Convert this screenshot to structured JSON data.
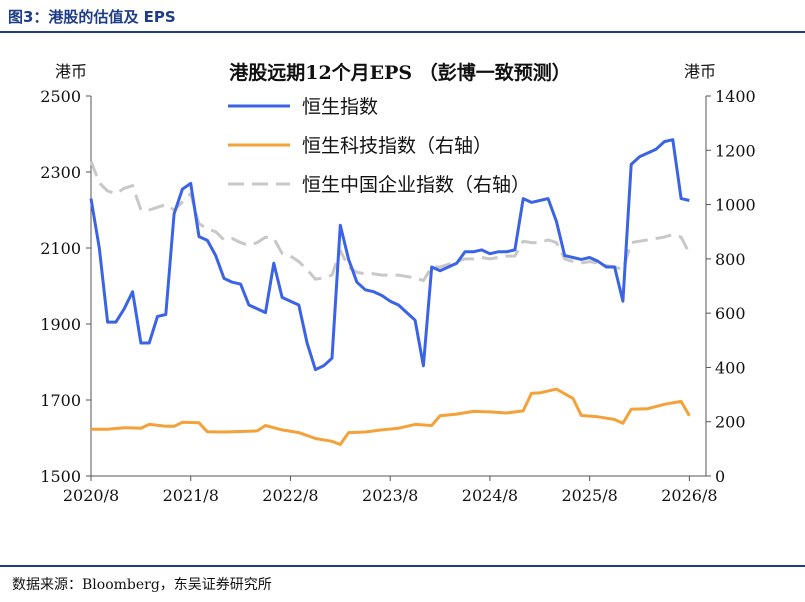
{
  "figure_title": "图3：港股的估值及 EPS",
  "source": "数据来源：Bloomberg，东吴证券研究所",
  "chart_data": {
    "type": "line",
    "title": "港股远期12个月EPS （彭博一致预测）",
    "ylabel_left": "港币",
    "ylabel_right": "港币",
    "ylim_left": [
      1500,
      2500
    ],
    "ylim_right": [
      0,
      1400
    ],
    "yticks_left": [
      1500,
      1700,
      1900,
      2100,
      2300,
      2500
    ],
    "yticks_right": [
      0,
      200,
      400,
      600,
      800,
      1000,
      1200,
      1400
    ],
    "xlim": [
      "2020-08",
      "2026-10"
    ],
    "xticks": [
      "2020/8",
      "2021/8",
      "2022/8",
      "2023/8",
      "2024/8",
      "2025/8",
      "2026/8"
    ],
    "grid": false,
    "legend_position": "top-center",
    "colors": {
      "hsi": "#3b63e6",
      "hstech": "#f4a139",
      "hscei": "#c8c8c8"
    },
    "series": [
      {
        "name": "恒生指数",
        "axis": "left",
        "style": "solid",
        "points": [
          [
            "2020-08",
            2230
          ],
          [
            "2020-09",
            2100
          ],
          [
            "2020-10",
            1905
          ],
          [
            "2020-11",
            1905
          ],
          [
            "2020-12",
            1940
          ],
          [
            "2021-01",
            1985
          ],
          [
            "2021-02",
            1850
          ],
          [
            "2021-03",
            1850
          ],
          [
            "2021-04",
            1920
          ],
          [
            "2021-05",
            1925
          ],
          [
            "2021-06",
            2190
          ],
          [
            "2021-07",
            2255
          ],
          [
            "2021-08",
            2270
          ],
          [
            "2021-09",
            2130
          ],
          [
            "2021-10",
            2120
          ],
          [
            "2021-11",
            2080
          ],
          [
            "2021-12",
            2020
          ],
          [
            "2022-01",
            2010
          ],
          [
            "2022-02",
            2005
          ],
          [
            "2022-03",
            1950
          ],
          [
            "2022-04",
            1940
          ],
          [
            "2022-05",
            1930
          ],
          [
            "2022-06",
            2060
          ],
          [
            "2022-07",
            1970
          ],
          [
            "2022-08",
            1960
          ],
          [
            "2022-09",
            1950
          ],
          [
            "2022-10",
            1850
          ],
          [
            "2022-11",
            1780
          ],
          [
            "2022-12",
            1790
          ],
          [
            "2023-01",
            1810
          ],
          [
            "2023-02",
            2160
          ],
          [
            "2023-03",
            2070
          ],
          [
            "2023-04",
            2010
          ],
          [
            "2023-05",
            1990
          ],
          [
            "2023-06",
            1985
          ],
          [
            "2023-07",
            1975
          ],
          [
            "2023-08",
            1960
          ],
          [
            "2023-09",
            1950
          ],
          [
            "2023-10",
            1930
          ],
          [
            "2023-11",
            1910
          ],
          [
            "2023-12",
            1790
          ],
          [
            "2024-01",
            2050
          ],
          [
            "2024-02",
            2040
          ],
          [
            "2024-03",
            2050
          ],
          [
            "2024-04",
            2060
          ],
          [
            "2024-05",
            2090
          ],
          [
            "2024-06",
            2090
          ],
          [
            "2024-07",
            2095
          ],
          [
            "2024-08",
            2085
          ],
          [
            "2024-09",
            2090
          ],
          [
            "2024-10",
            2090
          ],
          [
            "2024-11",
            2095
          ],
          [
            "2024-12",
            2230
          ],
          [
            "2025-01",
            2220
          ],
          [
            "2025-02",
            2225
          ],
          [
            "2025-03",
            2230
          ],
          [
            "2025-04",
            2170
          ],
          [
            "2025-05",
            2080
          ],
          [
            "2025-06",
            2075
          ],
          [
            "2025-07",
            2070
          ],
          [
            "2025-08",
            2075
          ],
          [
            "2025-09",
            2065
          ],
          [
            "2025-10",
            2050
          ],
          [
            "2025-11",
            2050
          ],
          [
            "2025-12",
            1960
          ],
          [
            "2026-01",
            2320
          ],
          [
            "2026-02",
            2340
          ],
          [
            "2026-03",
            2350
          ],
          [
            "2026-04",
            2360
          ],
          [
            "2026-05",
            2380
          ],
          [
            "2026-06",
            2385
          ],
          [
            "2026-07",
            2230
          ],
          [
            "2026-08",
            2225
          ]
        ]
      },
      {
        "name": "恒生科技指数（右轴）",
        "axis": "right",
        "style": "solid",
        "points": [
          [
            "2020-08",
            172
          ],
          [
            "2020-10",
            172
          ],
          [
            "2020-12",
            178
          ],
          [
            "2021-02",
            176
          ],
          [
            "2021-03",
            190
          ],
          [
            "2021-05",
            183
          ],
          [
            "2021-06",
            183
          ],
          [
            "2021-07",
            198
          ],
          [
            "2021-09",
            196
          ],
          [
            "2021-10",
            163
          ],
          [
            "2021-12",
            162
          ],
          [
            "2022-02",
            164
          ],
          [
            "2022-04",
            166
          ],
          [
            "2022-05",
            186
          ],
          [
            "2022-07",
            170
          ],
          [
            "2022-09",
            160
          ],
          [
            "2022-11",
            138
          ],
          [
            "2023-01",
            128
          ],
          [
            "2023-02",
            116
          ],
          [
            "2023-03",
            160
          ],
          [
            "2023-05",
            162
          ],
          [
            "2023-07",
            170
          ],
          [
            "2023-09",
            176
          ],
          [
            "2023-11",
            190
          ],
          [
            "2024-01",
            186
          ],
          [
            "2024-02",
            222
          ],
          [
            "2024-04",
            228
          ],
          [
            "2024-06",
            238
          ],
          [
            "2024-08",
            236
          ],
          [
            "2024-10",
            232
          ],
          [
            "2024-12",
            240
          ],
          [
            "2025-01",
            305
          ],
          [
            "2025-02",
            306
          ],
          [
            "2025-04",
            320
          ],
          [
            "2025-06",
            286
          ],
          [
            "2025-07",
            223
          ],
          [
            "2025-09",
            218
          ],
          [
            "2025-11",
            208
          ],
          [
            "2025-12",
            194
          ],
          [
            "2026-01",
            246
          ],
          [
            "2026-03",
            248
          ],
          [
            "2026-05",
            264
          ],
          [
            "2026-07",
            275
          ],
          [
            "2026-08",
            222
          ]
        ]
      },
      {
        "name": "恒生中国企业指数（右轴）",
        "axis": "right",
        "style": "dashed",
        "points": [
          [
            "2020-08",
            1160
          ],
          [
            "2020-09",
            1080
          ],
          [
            "2020-10",
            1050
          ],
          [
            "2020-11",
            1040
          ],
          [
            "2020-12",
            1060
          ],
          [
            "2021-01",
            1070
          ],
          [
            "2021-02",
            980
          ],
          [
            "2021-03",
            980
          ],
          [
            "2021-04",
            990
          ],
          [
            "2021-05",
            1000
          ],
          [
            "2021-06",
            980
          ],
          [
            "2021-07",
            1010
          ],
          [
            "2021-08",
            1040
          ],
          [
            "2021-09",
            930
          ],
          [
            "2021-10",
            910
          ],
          [
            "2021-11",
            900
          ],
          [
            "2021-12",
            870
          ],
          [
            "2022-01",
            875
          ],
          [
            "2022-02",
            860
          ],
          [
            "2022-03",
            850
          ],
          [
            "2022-04",
            860
          ],
          [
            "2022-05",
            880
          ],
          [
            "2022-06",
            875
          ],
          [
            "2022-07",
            820
          ],
          [
            "2022-08",
            810
          ],
          [
            "2022-09",
            790
          ],
          [
            "2022-10",
            760
          ],
          [
            "2022-11",
            725
          ],
          [
            "2022-12",
            730
          ],
          [
            "2023-01",
            740
          ],
          [
            "2023-02",
            830
          ],
          [
            "2023-03",
            770
          ],
          [
            "2023-04",
            750
          ],
          [
            "2023-05",
            745
          ],
          [
            "2023-06",
            745
          ],
          [
            "2023-07",
            740
          ],
          [
            "2023-08",
            740
          ],
          [
            "2023-09",
            740
          ],
          [
            "2023-10",
            735
          ],
          [
            "2023-11",
            730
          ],
          [
            "2023-12",
            720
          ],
          [
            "2024-01",
            770
          ],
          [
            "2024-02",
            770
          ],
          [
            "2024-03",
            780
          ],
          [
            "2024-04",
            790
          ],
          [
            "2024-05",
            800
          ],
          [
            "2024-06",
            800
          ],
          [
            "2024-07",
            805
          ],
          [
            "2024-08",
            800
          ],
          [
            "2024-09",
            805
          ],
          [
            "2024-10",
            810
          ],
          [
            "2024-11",
            810
          ],
          [
            "2024-12",
            865
          ],
          [
            "2025-01",
            860
          ],
          [
            "2025-02",
            860
          ],
          [
            "2025-03",
            870
          ],
          [
            "2025-04",
            860
          ],
          [
            "2025-05",
            800
          ],
          [
            "2025-06",
            790
          ],
          [
            "2025-07",
            785
          ],
          [
            "2025-08",
            790
          ],
          [
            "2025-09",
            785
          ],
          [
            "2025-10",
            775
          ],
          [
            "2025-11",
            770
          ],
          [
            "2025-12",
            760
          ],
          [
            "2026-01",
            860
          ],
          [
            "2026-02",
            865
          ],
          [
            "2026-03",
            870
          ],
          [
            "2026-04",
            875
          ],
          [
            "2026-05",
            880
          ],
          [
            "2026-06",
            890
          ],
          [
            "2026-07",
            880
          ],
          [
            "2026-08",
            820
          ]
        ]
      }
    ]
  }
}
